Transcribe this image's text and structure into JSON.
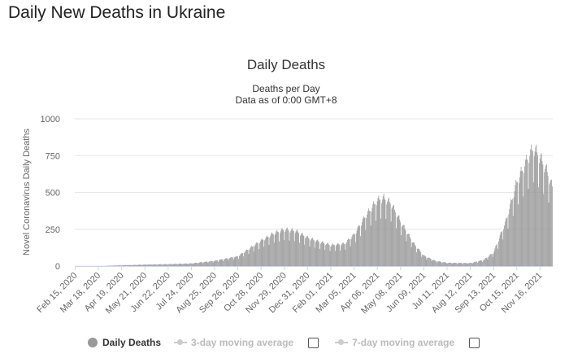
{
  "page": {
    "heading": "Daily New Deaths in Ukraine"
  },
  "legend": {
    "items": [
      {
        "label": "Daily Deaths",
        "active": true
      },
      {
        "label": "3-day moving average",
        "active": false
      },
      {
        "label": "7-day moving average",
        "active": false
      }
    ]
  },
  "colors": {
    "bars": "#999999",
    "grid": "#e6e6e6",
    "axis": "#ccd6eb",
    "text": "#333333"
  },
  "chart_data": {
    "type": "bar",
    "title": "Daily Deaths",
    "subtitle": "Deaths per Day",
    "subtitle2": "Data as of 0:00 GMT+8",
    "ylabel": "Novel Coronavirus Daily Deaths",
    "xlabel": "",
    "ylim": [
      0,
      1000
    ],
    "yticks": [
      0,
      250,
      500,
      750,
      1000
    ],
    "x_start": "2020-02-15",
    "x_end": "2021-12-03",
    "xtick_labels": [
      "Feb 15, 2020",
      "Mar 18, 2020",
      "Apr 19, 2020",
      "May 21, 2020",
      "Jun 22, 2020",
      "Jul 24, 2020",
      "Aug 25, 2020",
      "Sep 26, 2020",
      "Oct 28, 2020",
      "Nov 29, 2020",
      "Dec 31, 2020",
      "Feb 01, 2021",
      "Mar 05, 2021",
      "Apr 06, 2021",
      "May 08, 2021",
      "Jun 09, 2021",
      "Jul 11, 2021",
      "Aug 12, 2021",
      "Sep 13, 2021",
      "Oct 15, 2021",
      "Nov 16, 2021"
    ],
    "series": [
      {
        "name": "Daily Deaths",
        "anchors": [
          {
            "date": "2020-02-15",
            "value": 0
          },
          {
            "date": "2020-03-25",
            "value": 1
          },
          {
            "date": "2020-04-19",
            "value": 5
          },
          {
            "date": "2020-05-21",
            "value": 10
          },
          {
            "date": "2020-06-22",
            "value": 13
          },
          {
            "date": "2020-07-24",
            "value": 18
          },
          {
            "date": "2020-08-25",
            "value": 35
          },
          {
            "date": "2020-09-26",
            "value": 65
          },
          {
            "date": "2020-10-28",
            "value": 170
          },
          {
            "date": "2020-11-15",
            "value": 220
          },
          {
            "date": "2020-11-29",
            "value": 245
          },
          {
            "date": "2020-12-15",
            "value": 235
          },
          {
            "date": "2020-12-31",
            "value": 190
          },
          {
            "date": "2021-01-15",
            "value": 165
          },
          {
            "date": "2021-02-01",
            "value": 140
          },
          {
            "date": "2021-02-20",
            "value": 150
          },
          {
            "date": "2021-03-05",
            "value": 210
          },
          {
            "date": "2021-03-20",
            "value": 330
          },
          {
            "date": "2021-04-06",
            "value": 440
          },
          {
            "date": "2021-04-15",
            "value": 455
          },
          {
            "date": "2021-04-25",
            "value": 420
          },
          {
            "date": "2021-05-08",
            "value": 300
          },
          {
            "date": "2021-05-25",
            "value": 160
          },
          {
            "date": "2021-06-09",
            "value": 70
          },
          {
            "date": "2021-06-25",
            "value": 35
          },
          {
            "date": "2021-07-11",
            "value": 22
          },
          {
            "date": "2021-08-12",
            "value": 20
          },
          {
            "date": "2021-08-30",
            "value": 40
          },
          {
            "date": "2021-09-13",
            "value": 90
          },
          {
            "date": "2021-09-30",
            "value": 300
          },
          {
            "date": "2021-10-15",
            "value": 560
          },
          {
            "date": "2021-10-30",
            "value": 720
          },
          {
            "date": "2021-11-07",
            "value": 790
          },
          {
            "date": "2021-11-16",
            "value": 730
          },
          {
            "date": "2021-11-25",
            "value": 640
          },
          {
            "date": "2021-12-03",
            "value": 530
          }
        ],
        "weekday_factors": [
          1.0,
          0.72,
          0.95,
          1.0,
          1.05,
          1.08,
          1.02
        ]
      }
    ],
    "legend_position": "bottom",
    "grid": true
  }
}
